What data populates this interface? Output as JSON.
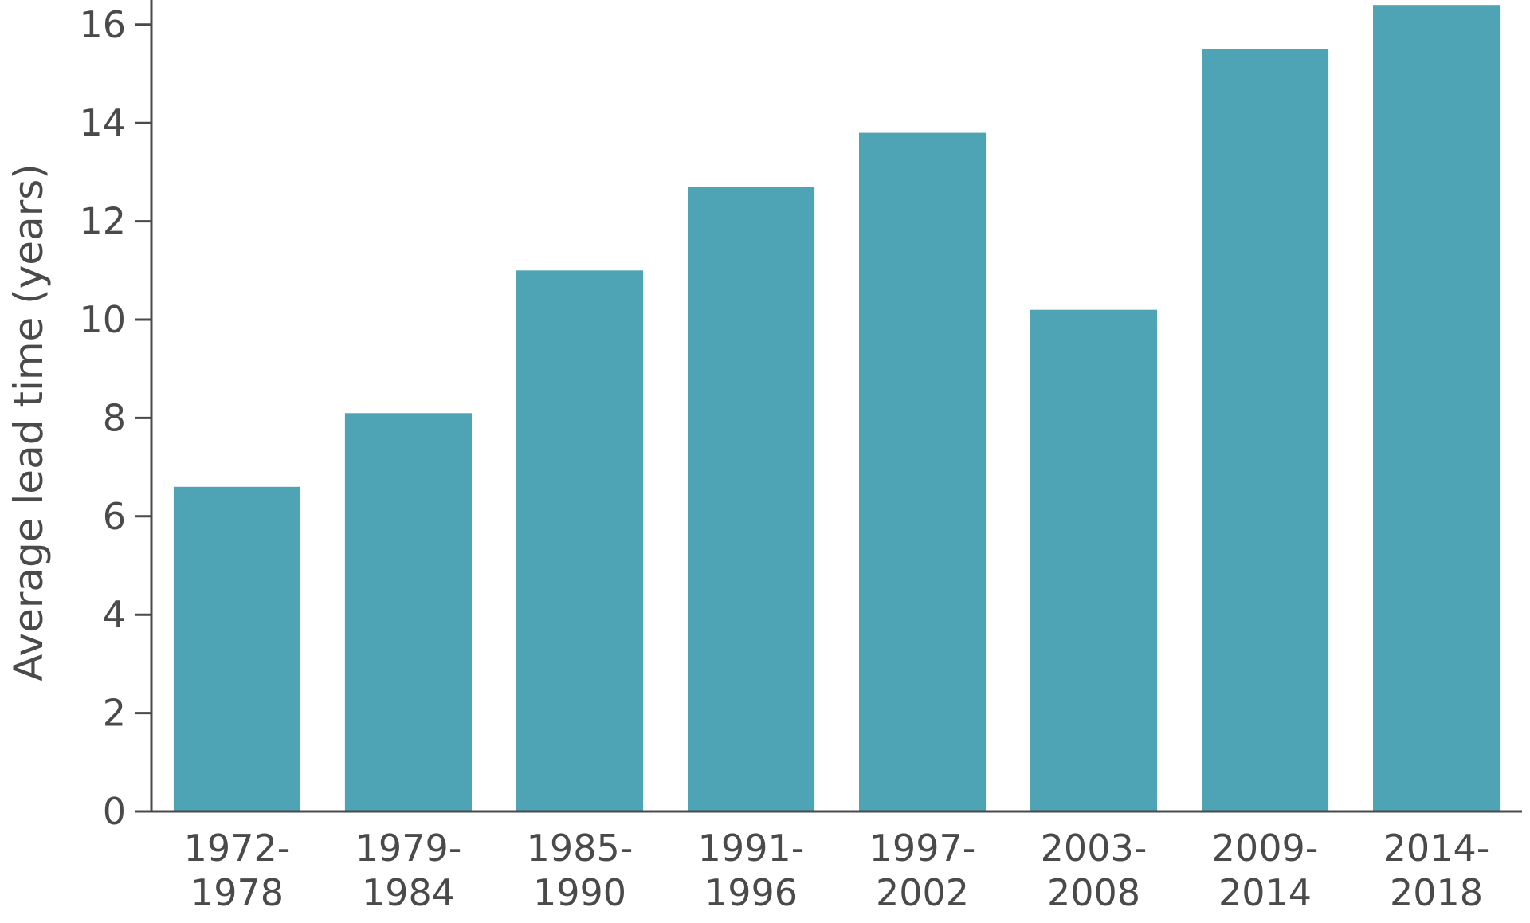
{
  "chart_data": {
    "type": "bar",
    "title": "",
    "xlabel": "",
    "ylabel": "Average lead time (years)",
    "ylim": [
      0,
      16.5
    ],
    "yticks": [
      0,
      2,
      4,
      6,
      8,
      10,
      12,
      14,
      16
    ],
    "grid": false,
    "categories": [
      [
        "1972-",
        "1978"
      ],
      [
        "1979-",
        "1984"
      ],
      [
        "1985-",
        "1990"
      ],
      [
        "1991-",
        "1996"
      ],
      [
        "1997-",
        "2002"
      ],
      [
        "2003-",
        "2008"
      ],
      [
        "2009-",
        "2014"
      ],
      [
        "2014-",
        "2018"
      ]
    ],
    "values": [
      6.6,
      8.1,
      11.0,
      12.7,
      13.8,
      10.2,
      15.5,
      16.4
    ],
    "bar_color": "#4ea3b5",
    "axis_color": "#4a4a4a"
  }
}
